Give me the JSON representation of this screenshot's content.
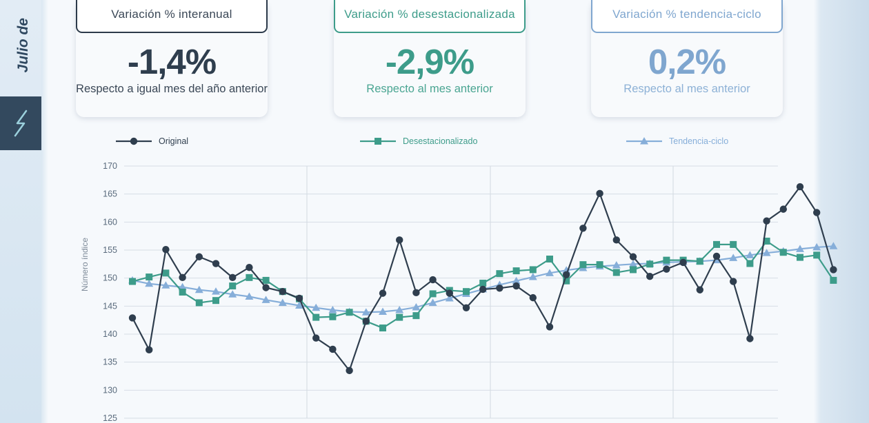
{
  "sidebar": {
    "date_label": "Julio de",
    "tab_icon": "zigzag-icon"
  },
  "cards": [
    {
      "title": "Variación % interanual",
      "value": "-1,4%",
      "note": "Respecto a igual mes del año anterior",
      "color": "#2f3e4e"
    },
    {
      "title": "Variación % desestacionalizada",
      "value": "-2,9%",
      "note": "Respecto al mes anterior",
      "color": "#3d9c8a"
    },
    {
      "title": "Variación % tendencia-ciclo",
      "value": "0,2%",
      "note": "Respecto al mes anterior",
      "color": "#7fa6cf"
    }
  ],
  "chart_data": {
    "type": "line",
    "ylabel": "Número índice",
    "ylim": [
      125,
      170
    ],
    "yticks": [
      125,
      130,
      135,
      140,
      145,
      150,
      155,
      160,
      165,
      170
    ],
    "grid": true,
    "legend_position": "top",
    "series": [
      {
        "name": "Original",
        "color": "#2f3e4e",
        "marker": "circle",
        "values": [
          142.9,
          137.2,
          155.1,
          150.1,
          153.8,
          152.6,
          150.1,
          151.9,
          148.3,
          147.6,
          146.4,
          139.3,
          137.3,
          133.5,
          142.3,
          147.3,
          156.8,
          147.4,
          149.7,
          147.3,
          144.7,
          148.0,
          148.2,
          148.6,
          146.5,
          141.3,
          150.6,
          158.9,
          165.1,
          156.8,
          153.8,
          150.3,
          151.6,
          152.8,
          147.9,
          153.9,
          149.4,
          139.2,
          160.2,
          162.3,
          166.3,
          161.7,
          151.5
        ]
      },
      {
        "name": "Desestacionalizado",
        "color": "#3d9c8a",
        "marker": "square",
        "values": [
          149.4,
          150.2,
          150.9,
          147.5,
          145.6,
          146.0,
          148.6,
          150.1,
          149.6,
          147.6,
          146.3,
          143.0,
          143.1,
          143.9,
          142.3,
          141.1,
          143.0,
          143.3,
          147.2,
          147.8,
          147.6,
          149.1,
          150.8,
          151.3,
          151.5,
          153.4,
          149.5,
          152.4,
          152.4,
          151.0,
          151.5,
          152.5,
          153.2,
          153.2,
          153.0,
          156.0,
          156.0,
          152.6,
          156.6,
          154.6,
          153.7,
          154.1,
          149.6
        ]
      },
      {
        "name": "Tendencia-ciclo",
        "color": "#86aed9",
        "marker": "triangle",
        "values": [
          149.6,
          149.0,
          148.7,
          148.4,
          147.9,
          147.6,
          147.1,
          146.7,
          146.1,
          145.6,
          145.1,
          144.7,
          144.3,
          144.0,
          143.9,
          144.0,
          144.3,
          144.8,
          145.6,
          146.4,
          147.2,
          148.0,
          148.8,
          149.5,
          150.2,
          150.9,
          151.4,
          151.8,
          152.1,
          152.3,
          152.5,
          152.6,
          152.8,
          152.9,
          153.0,
          153.2,
          153.6,
          154.1,
          154.5,
          154.8,
          155.2,
          155.5,
          155.7
        ]
      }
    ]
  }
}
